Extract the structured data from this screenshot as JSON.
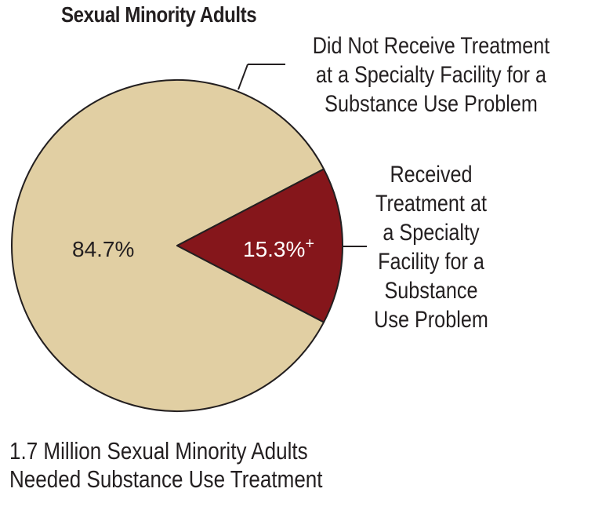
{
  "chart_data": {
    "type": "pie",
    "title": "Sexual Minority Adults",
    "slices": [
      {
        "label_lines": [
          "Received",
          "Treatment at",
          "a Specialty",
          "Facility for a",
          "Substance",
          "Use Problem"
        ],
        "value": 15.3,
        "value_label": "15.3%",
        "marker": "+",
        "color": "#85161b"
      },
      {
        "label_lines": [
          "Did Not Receive Treatment",
          "at a Specialty Facility for a",
          "Substance Use Problem"
        ],
        "value": 84.7,
        "value_label": "84.7%",
        "marker": "",
        "color": "#e1cfa3"
      }
    ],
    "footnote_lines": [
      "1.7 Million Sexual Minority Adults",
      "Needed Substance Use Treatment"
    ]
  },
  "colors": {
    "outline": "#231f20",
    "inner_text": "#ffffff",
    "outer_text": "#231f20"
  }
}
